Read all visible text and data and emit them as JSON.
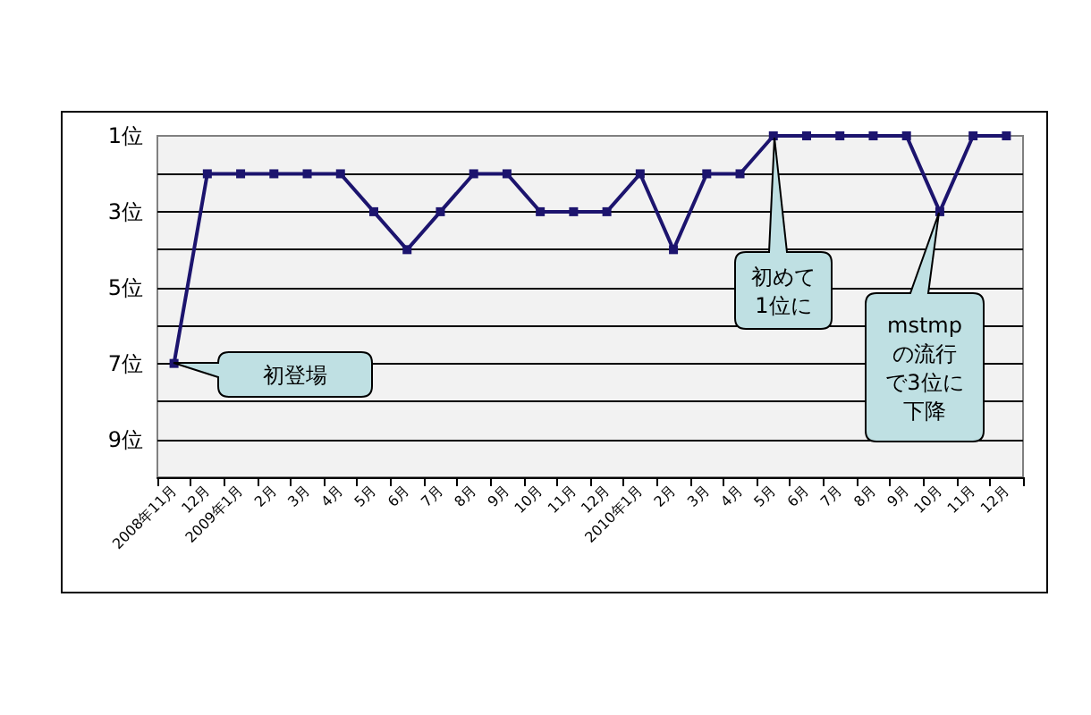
{
  "chart_data": {
    "type": "line",
    "categories": [
      "2008年11月",
      "12月",
      "2009年1月",
      "2月",
      "3月",
      "4月",
      "5月",
      "6月",
      "7月",
      "8月",
      "9月",
      "10月",
      "11月",
      "12月",
      "2010年1月",
      "2月",
      "3月",
      "4月",
      "5月",
      "6月",
      "7月",
      "8月",
      "9月",
      "10月",
      "11月",
      "12月"
    ],
    "series": [
      {
        "color": "#1c146e",
        "values": [
          7,
          2,
          2,
          2,
          2,
          2,
          3,
          4,
          3,
          2,
          2,
          3,
          3,
          3,
          2,
          4,
          2,
          2,
          1,
          1,
          1,
          1,
          1,
          3,
          1,
          1
        ]
      }
    ],
    "ylim": [
      10,
      1
    ],
    "yticks": [
      {
        "value": 1,
        "label": "1位"
      },
      {
        "value": 2,
        "label": null
      },
      {
        "value": 3,
        "label": "3位"
      },
      {
        "value": 4,
        "label": null
      },
      {
        "value": 5,
        "label": "5位"
      },
      {
        "value": 6,
        "label": null
      },
      {
        "value": 7,
        "label": "7位"
      },
      {
        "value": 8,
        "label": null
      },
      {
        "value": 9,
        "label": "9位"
      },
      {
        "value": 10,
        "label": null
      }
    ],
    "grid": "y",
    "marker": "square",
    "line_style": "solid",
    "annotations": [
      "初登場",
      "初めて1位に",
      "mstmpの流行で3位に下降"
    ]
  }
}
